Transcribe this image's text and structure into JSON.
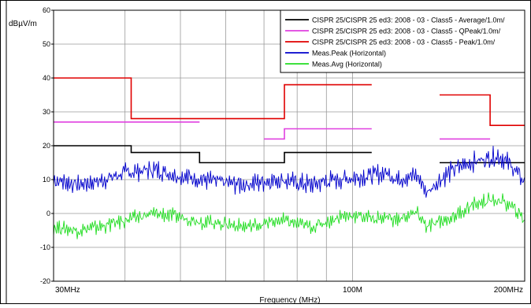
{
  "chart_data": {
    "type": "line",
    "title": "",
    "ylabel": "dBµV/m",
    "xlabel": "Frequency (MHz)",
    "x_scale": "log",
    "xlim": [
      30,
      200
    ],
    "ylim": [
      -20,
      60
    ],
    "y_ticks": [
      {
        "value": 60,
        "label": "60"
      },
      {
        "value": 50,
        "label": "50"
      },
      {
        "value": 40,
        "label": "40"
      },
      {
        "value": 30,
        "label": "30"
      },
      {
        "value": 20,
        "label": "20"
      },
      {
        "value": 10,
        "label": "10"
      },
      {
        "value": 0,
        "label": "0"
      },
      {
        "value": -10,
        "label": "-10"
      },
      {
        "value": -20,
        "label": "-20"
      }
    ],
    "x_tick_labels": [
      {
        "value": 30,
        "label": "30MHz"
      },
      {
        "value": 100,
        "label": "100M"
      },
      {
        "value": 200,
        "label": "200MHz"
      }
    ],
    "grid": true,
    "legend_position": "top-right",
    "limit_series": [
      {
        "name": "CISPR 25/CISPR 25 ed3: 2008 - 03 - Class5 - Average/1.0m/",
        "color": "#000000",
        "segments": [
          [
            [
              30,
              20
            ],
            [
              41,
              20
            ],
            [
              41,
              18
            ],
            [
              54,
              18
            ],
            [
              54,
              15
            ],
            [
              76,
              15
            ],
            [
              76,
              18
            ],
            [
              108,
              18
            ]
          ],
          [
            [
              142,
              15
            ],
            [
              200,
              15
            ]
          ]
        ]
      },
      {
        "name": "CISPR 25/CISPR 25 ed3: 2008 - 03 - Class5 - QPeak/1.0m/",
        "color": "#e040e0",
        "segments": [
          [
            [
              30,
              27
            ],
            [
              54,
              27
            ]
          ],
          [
            [
              70,
              22
            ],
            [
              76,
              22
            ],
            [
              76,
              25
            ],
            [
              108,
              25
            ]
          ],
          [
            [
              142,
              22
            ],
            [
              174,
              22
            ]
          ]
        ]
      },
      {
        "name": "CISPR 25/CISPR 25 ed3: 2008 - 03 - Class5 - Peak/1.0m/",
        "color": "#e00000",
        "segments": [
          [
            [
              30,
              40
            ],
            [
              41,
              40
            ],
            [
              41,
              28
            ],
            [
              76,
              28
            ],
            [
              76,
              38
            ],
            [
              108,
              38
            ]
          ],
          [
            [
              142,
              35
            ],
            [
              174,
              35
            ],
            [
              174,
              26
            ],
            [
              200,
              26
            ]
          ]
        ]
      }
    ],
    "measurement_series": [
      {
        "name": "Meas.Peak (Horizontal)",
        "color": "#0000cc",
        "x": [
          30,
          33,
          36,
          40,
          45,
          50,
          55,
          60,
          65,
          70,
          75,
          80,
          85,
          90,
          95,
          100,
          105,
          110,
          115,
          120,
          125,
          130,
          135,
          140,
          150,
          160,
          170,
          180,
          190,
          200
        ],
        "y": [
          10,
          8.5,
          9.5,
          12,
          13,
          11,
          10,
          9,
          8.5,
          9.5,
          10,
          9,
          8.5,
          9.5,
          10,
          10.5,
          11,
          11.5,
          12,
          10,
          11,
          11,
          6,
          9,
          13,
          15,
          16,
          17,
          14,
          9
        ],
        "ripple": 2.6
      },
      {
        "name": "Meas.Avg (Horizontal)",
        "color": "#22dd22",
        "x": [
          30,
          33,
          36,
          40,
          45,
          50,
          55,
          60,
          65,
          70,
          75,
          80,
          85,
          90,
          95,
          100,
          105,
          110,
          115,
          120,
          125,
          130,
          135,
          140,
          150,
          160,
          170,
          180,
          190,
          200
        ],
        "y": [
          -4,
          -5,
          -4,
          -2,
          0,
          -1,
          -2.5,
          -3,
          -4,
          -3,
          -2,
          -3,
          -4,
          -2.5,
          -1,
          -0.5,
          -1,
          -1.5,
          -1,
          -2,
          -0.5,
          0,
          -4,
          -3,
          -1,
          2,
          3.5,
          4,
          2,
          -2
        ],
        "ripple": 2.0
      }
    ]
  }
}
